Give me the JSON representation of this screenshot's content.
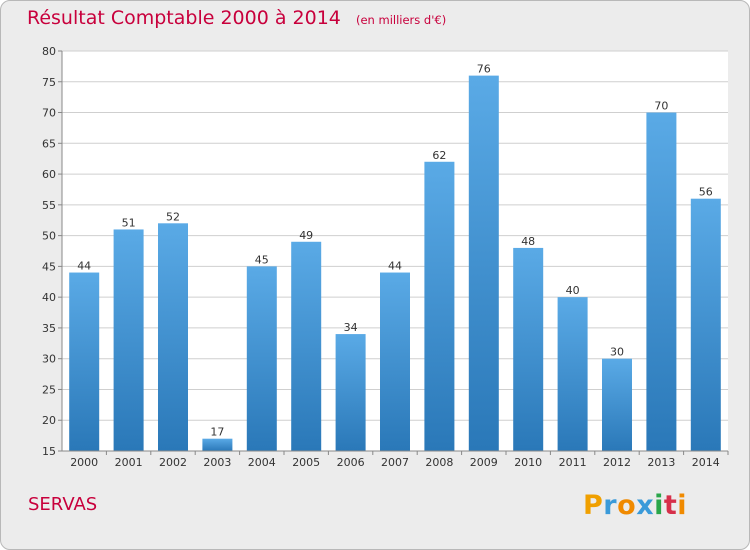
{
  "title": "Résultat Comptable 2000 à 2014",
  "unit": "(en milliers d'€)",
  "place": "SERVAS",
  "logo": {
    "text": "Proxiti",
    "letters": [
      "P",
      "r",
      "o",
      "x",
      "i",
      "t",
      "i"
    ]
  },
  "colors": {
    "accent": "#c8003c",
    "bar_top": "#5aaae6",
    "bar_bottom": "#2a78b8",
    "background": "#ececec"
  },
  "chart_data": {
    "type": "bar",
    "categories": [
      "2000",
      "2001",
      "2002",
      "2003",
      "2004",
      "2005",
      "2006",
      "2007",
      "2008",
      "2009",
      "2010",
      "2011",
      "2012",
      "2013",
      "2014"
    ],
    "values": [
      44,
      51,
      52,
      17,
      45,
      49,
      34,
      44,
      62,
      76,
      48,
      40,
      30,
      70,
      56
    ],
    "ylim": [
      15,
      80
    ],
    "yticks": [
      15,
      20,
      25,
      30,
      35,
      40,
      45,
      50,
      55,
      60,
      65,
      70,
      75,
      80
    ],
    "grid": true,
    "data_labels": true
  }
}
